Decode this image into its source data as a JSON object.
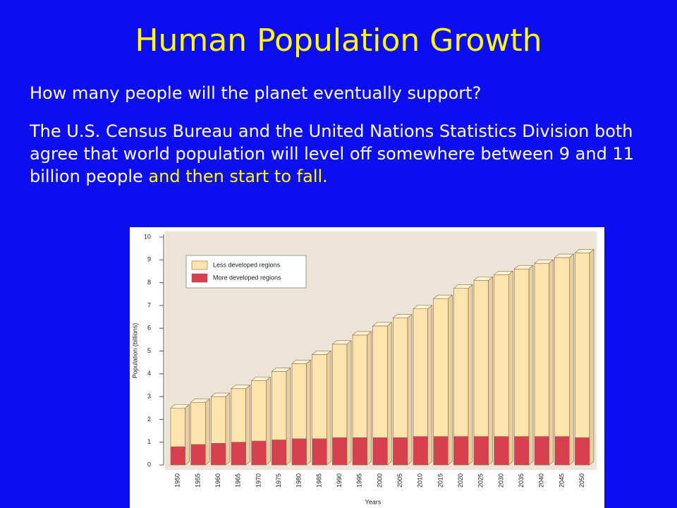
{
  "slide": {
    "title": "Human Population Growth",
    "question": "How many people will the planet eventually support?",
    "statement": "The U.S. Census Bureau and the United Nations Statistics Division both agree that world population will level off somewhere between 9 and 11 billion people",
    "highlight": "and then start to fall."
  },
  "chart_data": {
    "type": "stacked_bar",
    "xlabel": "Years",
    "ylabel": "Population (billions)",
    "categories": [
      "1950",
      "1955",
      "1960",
      "1965",
      "1970",
      "1975",
      "1980",
      "1985",
      "1990",
      "1995",
      "2000",
      "2005",
      "2010",
      "2015",
      "2020",
      "2025",
      "2030",
      "2035",
      "2040",
      "2045",
      "2050"
    ],
    "series": [
      {
        "name": "More developed regions",
        "color": "#d9404f",
        "values": [
          0.8,
          0.9,
          0.95,
          1.0,
          1.05,
          1.1,
          1.15,
          1.15,
          1.2,
          1.2,
          1.2,
          1.2,
          1.25,
          1.25,
          1.25,
          1.25,
          1.25,
          1.25,
          1.25,
          1.25,
          1.2
        ]
      },
      {
        "name": "Less developed regions",
        "color": "#fde3ac",
        "values": [
          1.7,
          1.85,
          2.05,
          2.35,
          2.65,
          3.0,
          3.3,
          3.7,
          4.1,
          4.5,
          4.9,
          5.25,
          5.6,
          6.05,
          6.5,
          6.85,
          7.1,
          7.35,
          7.6,
          7.85,
          8.1
        ]
      }
    ],
    "ylim": [
      0,
      10
    ],
    "yticks": [
      0,
      1,
      2,
      3,
      4,
      5,
      6,
      7,
      8,
      9,
      10
    ],
    "legend": "upper left"
  }
}
